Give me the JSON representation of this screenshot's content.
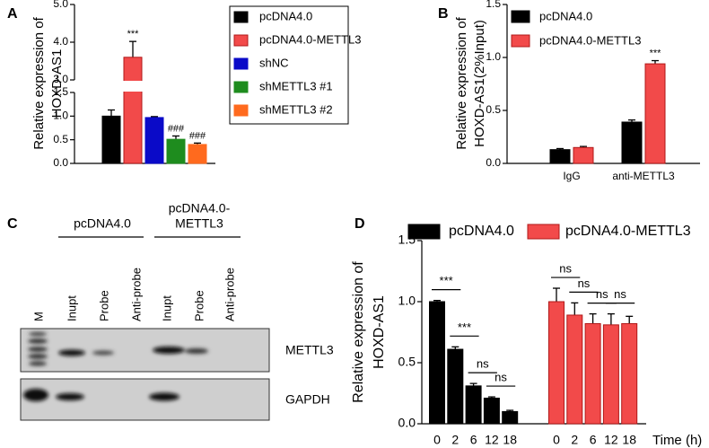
{
  "chart_data": [
    {
      "panel": "A",
      "type": "bar",
      "ylabel": [
        "Relative expression of",
        "HOXD-AS1"
      ],
      "categories": [
        null
      ],
      "ylim": [
        0,
        5
      ],
      "ybreak": [
        1.5,
        3
      ],
      "yticks": [
        {
          "value": 0,
          "label": "0.0"
        },
        {
          "value": 0.5,
          "label": "0.5"
        },
        {
          "value": 1,
          "label": "1.0"
        },
        {
          "value": 1.5,
          "label": "1.5"
        },
        {
          "value": 3,
          "label": "3.0"
        },
        {
          "value": 4,
          "label": "4.0"
        },
        {
          "value": 5,
          "label": "5.0"
        }
      ],
      "series": [
        {
          "name": "pcDNA4.0",
          "color": "#000000",
          "values": [
            1.0
          ],
          "errors": [
            0.13
          ]
        },
        {
          "name": "pcDNA4.0-METTL3",
          "color": "#f24a4a",
          "values": [
            3.6
          ],
          "errors": [
            0.42
          ],
          "annotations": [
            "***"
          ]
        },
        {
          "name": "shNC",
          "color": "#0a0ac8",
          "values": [
            0.97
          ],
          "errors": [
            0.02
          ]
        },
        {
          "name": "shMETTL3 #1",
          "color": "#1e8c1e",
          "values": [
            0.51
          ],
          "errors": [
            0.07
          ],
          "annotations": [
            "###"
          ]
        },
        {
          "name": "shMETTL3 #2",
          "color": "#ff6a1e",
          "values": [
            0.4
          ],
          "errors": [
            0.03
          ],
          "annotations": [
            "###"
          ]
        }
      ]
    },
    {
      "panel": "B",
      "type": "bar",
      "ylabel": [
        "Relative expression of",
        "HOXD-AS1(2%Input)"
      ],
      "categories": [
        "IgG",
        "anti-METTL3"
      ],
      "ylim": [
        0,
        1.5
      ],
      "yticks": [
        {
          "value": 0,
          "label": "0.0"
        },
        {
          "value": 0.5,
          "label": "0.5"
        },
        {
          "value": 1,
          "label": "1.0"
        },
        {
          "value": 1.5,
          "label": "1.5"
        }
      ],
      "series": [
        {
          "name": "pcDNA4.0",
          "color": "#000000",
          "values": [
            0.13,
            0.39
          ],
          "errors": [
            0.01,
            0.02
          ]
        },
        {
          "name": "pcDNA4.0-METTL3",
          "color": "#f24a4a",
          "values": [
            0.15,
            0.94
          ],
          "errors": [
            0.01,
            0.03
          ],
          "annotations": [
            null,
            "***"
          ]
        }
      ]
    },
    {
      "panel": "D",
      "type": "bar",
      "ylabel": [
        "Relative expression of",
        "HOXD-AS1"
      ],
      "xlabel": "Time (h)",
      "categories": [
        "0",
        "2",
        "6",
        "12",
        "18"
      ],
      "ylim": [
        0,
        1.5
      ],
      "yticks": [
        {
          "value": 0,
          "label": "0.0"
        },
        {
          "value": 0.5,
          "label": "0.5"
        },
        {
          "value": 1,
          "label": "1.0"
        },
        {
          "value": 1.5,
          "label": "1.5"
        }
      ],
      "series": [
        {
          "name": "pcDNA4.0",
          "color": "#000000",
          "values": [
            1.0,
            0.61,
            0.31,
            0.21,
            0.1
          ],
          "errors": [
            0.01,
            0.02,
            0.02,
            0.01,
            0.01
          ],
          "comparisons": [
            "***",
            "***",
            "ns",
            "ns"
          ]
        },
        {
          "name": "pcDNA4.0-METTL3",
          "color": "#f24a4a",
          "values": [
            1.0,
            0.89,
            0.82,
            0.81,
            0.82
          ],
          "errors": [
            0.11,
            0.1,
            0.08,
            0.09,
            0.06
          ],
          "comparisons": [
            "ns",
            "ns",
            "ns",
            "ns"
          ]
        }
      ]
    }
  ],
  "blot": {
    "panel": "C",
    "groups": [
      {
        "label": [
          "pcDNA4.0"
        ]
      },
      {
        "label": [
          "pcDNA4.0-",
          "METTL3"
        ]
      }
    ],
    "lanes": [
      "M",
      "Inupt",
      "Probe",
      "Anti-probe",
      "Inupt",
      "Probe",
      "Anti-probe"
    ],
    "rows": [
      "METTL3",
      "GAPDH"
    ]
  }
}
